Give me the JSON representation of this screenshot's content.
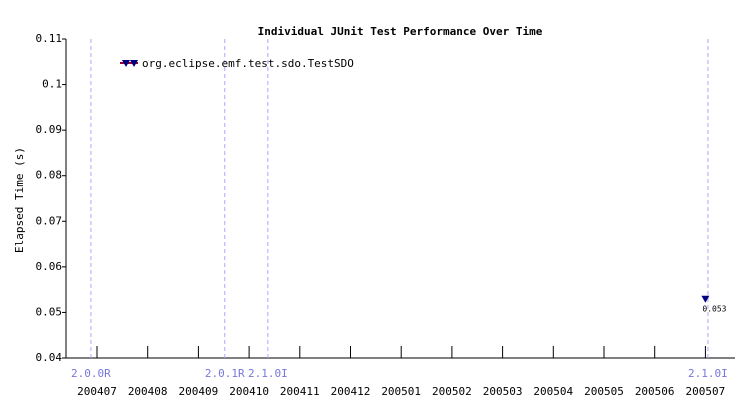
{
  "chart_data": {
    "type": "line",
    "title": "Individual JUnit Test Performance Over Time",
    "y_label": "Elapsed Time (s)",
    "categories": [
      "200407",
      "200408",
      "200409",
      "200410",
      "200411",
      "200412",
      "200501",
      "200502",
      "200503",
      "200504",
      "200505",
      "200506",
      "200507"
    ],
    "series": [
      {
        "name": "org.eclipse.emf.test.sdo.TestSDO",
        "color": "#990033",
        "marker_color": "#000080",
        "values": [
          null,
          null,
          null,
          null,
          null,
          null,
          null,
          null,
          null,
          null,
          null,
          null,
          0.053
        ]
      }
    ],
    "release_markers": [
      {
        "label": "2.0.0R",
        "x": -0.12
      },
      {
        "label": "2.0.1R",
        "x": 2.52
      },
      {
        "label": "2.1.0I",
        "x": 3.37
      },
      {
        "label": "2.1.0I",
        "x": 12.05
      }
    ],
    "ylim": [
      0.04,
      0.11
    ],
    "yticks": [
      0.04,
      0.05,
      0.06,
      0.07,
      0.08,
      0.09,
      0.1,
      0.11
    ],
    "legend": "top-left"
  }
}
